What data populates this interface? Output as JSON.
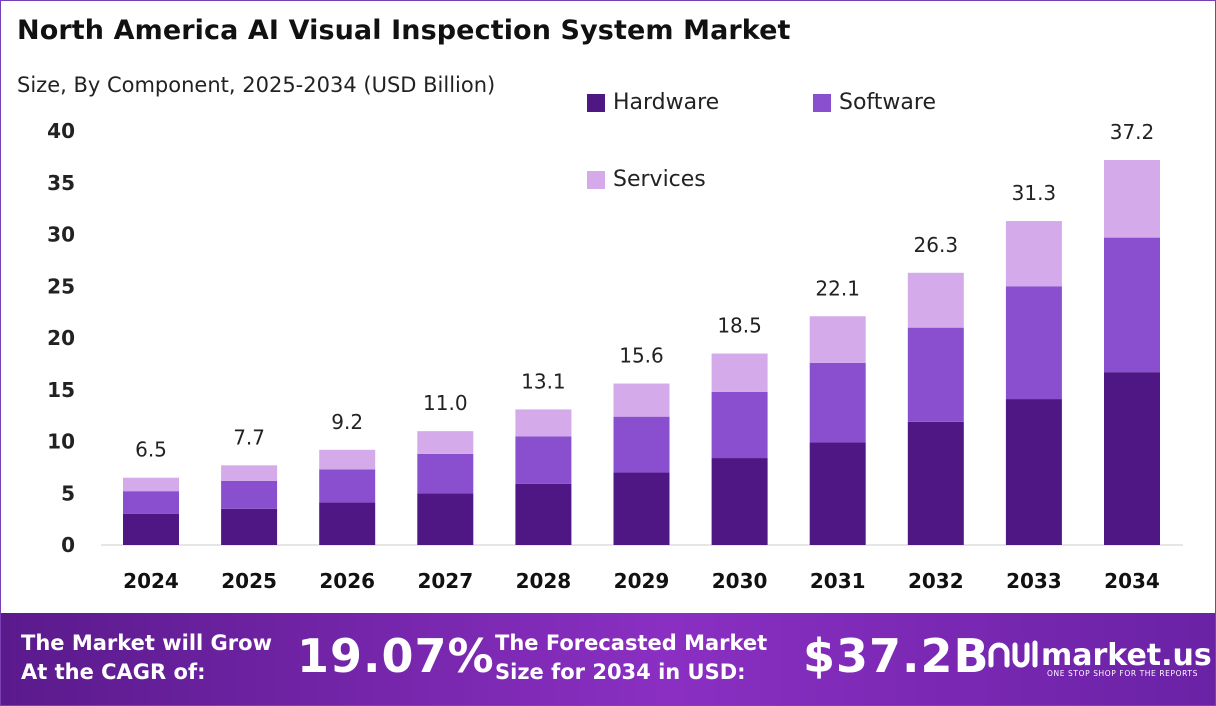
{
  "header": {
    "title": "North America AI Visual Inspection System Market",
    "subtitle": "Size, By Component, 2025-2034 (USD Billion)"
  },
  "colors": {
    "hardware": "#4e1784",
    "software": "#8a4fcf",
    "services": "#d4aaea",
    "footer_start": "#5a1a8c",
    "footer_end": "#8a2fc2"
  },
  "chart_data": {
    "type": "bar",
    "stacked": true,
    "categories": [
      "2024",
      "2025",
      "2026",
      "2027",
      "2028",
      "2029",
      "2030",
      "2031",
      "2032",
      "2033",
      "2034"
    ],
    "series": [
      {
        "name": "Hardware",
        "values": [
          3.0,
          3.5,
          4.1,
          5.0,
          5.9,
          7.0,
          8.4,
          9.9,
          11.9,
          14.1,
          16.7
        ]
      },
      {
        "name": "Software",
        "values": [
          2.2,
          2.7,
          3.2,
          3.8,
          4.6,
          5.4,
          6.4,
          7.7,
          9.1,
          10.9,
          13.0
        ]
      },
      {
        "name": "Services",
        "values": [
          1.3,
          1.5,
          1.9,
          2.2,
          2.6,
          3.2,
          3.7,
          4.5,
          5.3,
          6.3,
          7.5
        ]
      }
    ],
    "totals": [
      "6.5",
      "7.7",
      "9.2",
      "11.0",
      "13.1",
      "15.6",
      "18.5",
      "22.1",
      "26.3",
      "31.3",
      "37.2"
    ],
    "yticks": [
      0,
      5,
      10,
      15,
      20,
      25,
      30,
      35,
      40
    ],
    "ylim": [
      0,
      40
    ],
    "grid": false,
    "legend_position": "top-center"
  },
  "legend": {
    "items": [
      {
        "label": "Hardware",
        "color": "#4e1784"
      },
      {
        "label": "Software",
        "color": "#8a4fcf"
      },
      {
        "label": "Services",
        "color": "#d4aaea"
      }
    ]
  },
  "footer": {
    "cagr_label_line1": "The Market will Grow",
    "cagr_label_line2": "At the CAGR of:",
    "cagr_value": "19.07%",
    "forecast_label_line1": "The Forecasted Market",
    "forecast_label_line2": "Size for 2034 in USD:",
    "forecast_value": "$37.2B",
    "brand_name": "market.us",
    "brand_tagline": "ONE STOP SHOP FOR THE REPORTS"
  }
}
